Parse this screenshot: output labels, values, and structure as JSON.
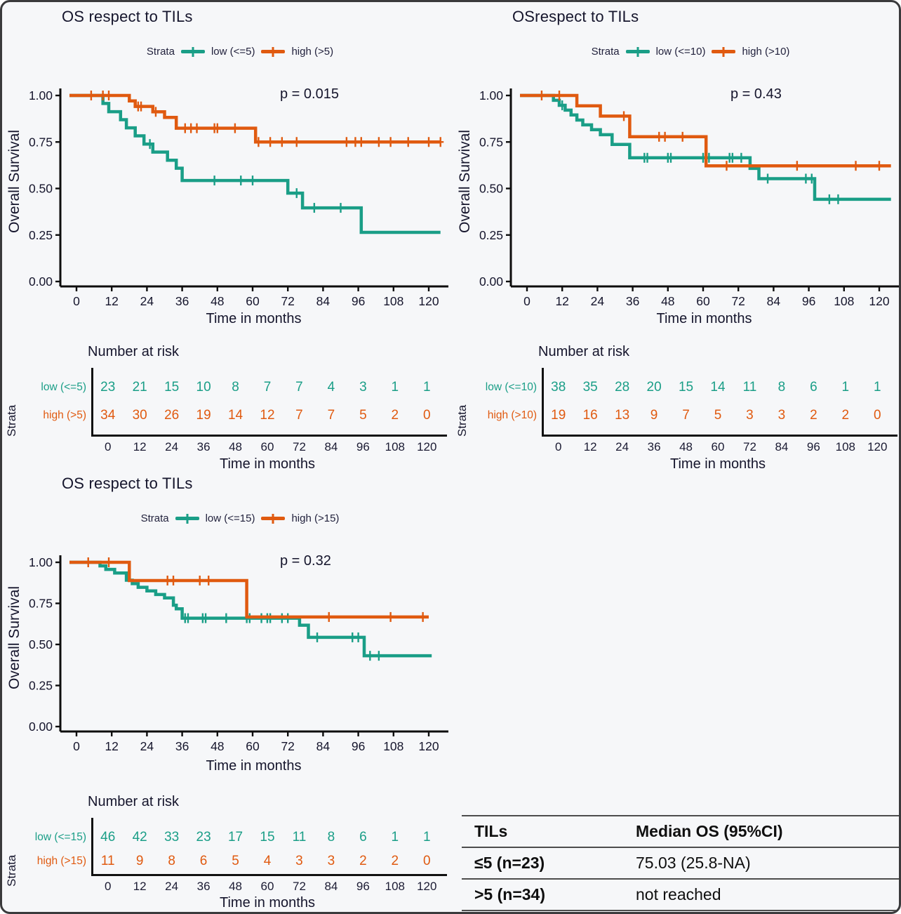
{
  "colors": {
    "low": "#1A9E87",
    "high": "#E05A10",
    "text": "#15152c",
    "axis": "#0d0d0d",
    "background": "#f6f7f9"
  },
  "chart_data": [
    {
      "type": "line",
      "subtype": "kaplan-meier",
      "title": "OS respect to TILs",
      "legend_label": "Strata",
      "p_value": "p = 0.015",
      "xlabel": "Time in months",
      "ylabel": "Overall Survival",
      "xticks": [
        0,
        12,
        24,
        36,
        48,
        60,
        72,
        84,
        96,
        108,
        120
      ],
      "ytick_labels": [
        "0.00",
        "0.25",
        "0.50",
        "0.75",
        "1.00"
      ],
      "yticks": [
        0,
        0.25,
        0.5,
        0.75,
        1
      ],
      "xlim": [
        0,
        126
      ],
      "ylim": [
        0,
        1
      ],
      "series": [
        {
          "name": "low (<=5)",
          "color_key": "low",
          "points": [
            [
              0,
              1
            ],
            [
              9,
              0.957
            ],
            [
              11,
              0.913
            ],
            [
              15,
              0.87
            ],
            [
              17,
              0.826
            ],
            [
              20,
              0.783
            ],
            [
              23,
              0.739
            ],
            [
              26,
              0.696
            ],
            [
              31,
              0.652
            ],
            [
              34,
              0.609
            ],
            [
              36,
              0.543
            ],
            [
              72,
              0.475
            ],
            [
              77,
              0.396
            ],
            [
              97,
              0.264
            ],
            [
              124,
              0.264
            ]
          ],
          "censors": [
            [
              25,
              0.739
            ],
            [
              47,
              0.543
            ],
            [
              56,
              0.543
            ],
            [
              60,
              0.543
            ],
            [
              75,
              0.475
            ],
            [
              81,
              0.396
            ],
            [
              90,
              0.396
            ]
          ]
        },
        {
          "name": "high (>5)",
          "color_key": "high",
          "points": [
            [
              0,
              1
            ],
            [
              18,
              0.971
            ],
            [
              20,
              0.941
            ],
            [
              26,
              0.912
            ],
            [
              30,
              0.882
            ],
            [
              34,
              0.824
            ],
            [
              61,
              0.75
            ],
            [
              124,
              0.75
            ]
          ],
          "censors": [
            [
              5,
              1
            ],
            [
              9,
              1
            ],
            [
              11,
              1
            ],
            [
              21,
              0.941
            ],
            [
              22,
              0.941
            ],
            [
              27,
              0.912
            ],
            [
              37,
              0.824
            ],
            [
              39,
              0.824
            ],
            [
              41,
              0.824
            ],
            [
              47,
              0.824
            ],
            [
              48,
              0.824
            ],
            [
              54,
              0.824
            ],
            [
              62,
              0.75
            ],
            [
              66,
              0.75
            ],
            [
              70,
              0.75
            ],
            [
              75,
              0.75
            ],
            [
              92,
              0.75
            ],
            [
              95,
              0.75
            ],
            [
              97,
              0.75
            ],
            [
              103,
              0.75
            ],
            [
              107,
              0.75
            ],
            [
              113,
              0.75
            ],
            [
              120,
              0.75
            ],
            [
              124,
              0.75
            ]
          ]
        }
      ],
      "risk_table": {
        "title": "Number at risk",
        "strata_label": "Strata",
        "xlabel": "Time in months",
        "timepoints": [
          0,
          12,
          24,
          36,
          48,
          60,
          72,
          84,
          96,
          108,
          120
        ],
        "rows": [
          {
            "label": "low (<=5)",
            "color_key": "low",
            "counts": [
              23,
              21,
              15,
              10,
              8,
              7,
              7,
              4,
              3,
              1,
              1
            ]
          },
          {
            "label": "high (>5)",
            "color_key": "high",
            "counts": [
              34,
              30,
              26,
              19,
              14,
              12,
              7,
              7,
              5,
              2,
              0
            ]
          }
        ]
      }
    },
    {
      "type": "line",
      "subtype": "kaplan-meier",
      "title": "OSrespect to TILs",
      "legend_label": "Strata",
      "p_value": "p = 0.43",
      "xlabel": "Time in months",
      "ylabel": "Overall Survival",
      "xticks": [
        0,
        12,
        24,
        36,
        48,
        60,
        72,
        84,
        96,
        108,
        120
      ],
      "ytick_labels": [
        "0.00",
        "0.25",
        "0.50",
        "0.75",
        "1.00"
      ],
      "yticks": [
        0,
        0.25,
        0.5,
        0.75,
        1
      ],
      "xlim": [
        0,
        126
      ],
      "ylim": [
        0,
        1
      ],
      "series": [
        {
          "name": "low (<=10)",
          "color_key": "low",
          "points": [
            [
              0,
              1
            ],
            [
              9,
              0.974
            ],
            [
              11,
              0.947
            ],
            [
              13,
              0.921
            ],
            [
              15,
              0.895
            ],
            [
              17,
              0.868
            ],
            [
              19,
              0.842
            ],
            [
              22,
              0.816
            ],
            [
              25,
              0.789
            ],
            [
              29,
              0.737
            ],
            [
              35,
              0.665
            ],
            [
              76,
              0.608
            ],
            [
              79,
              0.553
            ],
            [
              98,
              0.442
            ],
            [
              124,
              0.442
            ]
          ],
          "censors": [
            [
              12,
              0.947
            ],
            [
              40,
              0.665
            ],
            [
              41,
              0.665
            ],
            [
              48,
              0.665
            ],
            [
              49,
              0.665
            ],
            [
              60,
              0.665
            ],
            [
              62,
              0.665
            ],
            [
              69,
              0.665
            ],
            [
              70,
              0.665
            ],
            [
              73,
              0.665
            ],
            [
              82,
              0.553
            ],
            [
              95,
              0.553
            ],
            [
              97,
              0.553
            ],
            [
              103,
              0.442
            ],
            [
              106,
              0.442
            ]
          ]
        },
        {
          "name": "high (>10)",
          "color_key": "high",
          "points": [
            [
              0,
              1
            ],
            [
              17,
              0.944
            ],
            [
              25,
              0.889
            ],
            [
              35,
              0.778
            ],
            [
              61,
              0.622
            ],
            [
              124,
              0.622
            ]
          ],
          "censors": [
            [
              5,
              1
            ],
            [
              11,
              1
            ],
            [
              33,
              0.889
            ],
            [
              45,
              0.778
            ],
            [
              47,
              0.778
            ],
            [
              53,
              0.778
            ],
            [
              68,
              0.622
            ],
            [
              92,
              0.622
            ],
            [
              112,
              0.622
            ],
            [
              120,
              0.622
            ]
          ]
        }
      ],
      "risk_table": {
        "title": "Number at risk",
        "strata_label": "Strata",
        "xlabel": "Time in months",
        "timepoints": [
          0,
          12,
          24,
          36,
          48,
          60,
          72,
          84,
          96,
          108,
          120
        ],
        "rows": [
          {
            "label": "low (<=10)",
            "color_key": "low",
            "counts": [
              38,
              35,
              28,
              20,
              15,
              14,
              11,
              8,
              6,
              1,
              1
            ]
          },
          {
            "label": "high (>10)",
            "color_key": "high",
            "counts": [
              19,
              16,
              13,
              9,
              7,
              5,
              3,
              3,
              2,
              2,
              0
            ]
          }
        ]
      }
    },
    {
      "type": "line",
      "subtype": "kaplan-meier",
      "title": "OS respect to TILs",
      "legend_label": "Strata",
      "p_value": "p = 0.32",
      "xlabel": "Time in months",
      "ylabel": "Overall Survival",
      "xticks": [
        0,
        12,
        24,
        36,
        48,
        60,
        72,
        84,
        96,
        108,
        120
      ],
      "ytick_labels": [
        "0.00",
        "0.25",
        "0.50",
        "0.75",
        "1.00"
      ],
      "yticks": [
        0,
        0.25,
        0.5,
        0.75,
        1
      ],
      "xlim": [
        0,
        126
      ],
      "ylim": [
        0,
        1
      ],
      "series": [
        {
          "name": "low (<=15)",
          "color_key": "low",
          "points": [
            [
              0,
              1
            ],
            [
              8,
              0.978
            ],
            [
              10,
              0.957
            ],
            [
              13,
              0.935
            ],
            [
              17,
              0.891
            ],
            [
              19,
              0.87
            ],
            [
              21,
              0.848
            ],
            [
              24,
              0.826
            ],
            [
              27,
              0.804
            ],
            [
              30,
              0.783
            ],
            [
              33,
              0.739
            ],
            [
              34,
              0.717
            ],
            [
              36,
              0.66
            ],
            [
              76,
              0.617
            ],
            [
              79,
              0.543
            ],
            [
              98,
              0.431
            ],
            [
              121,
              0.431
            ]
          ],
          "censors": [
            [
              37,
              0.66
            ],
            [
              38,
              0.66
            ],
            [
              43,
              0.66
            ],
            [
              44,
              0.66
            ],
            [
              51,
              0.66
            ],
            [
              58,
              0.66
            ],
            [
              59,
              0.66
            ],
            [
              63,
              0.66
            ],
            [
              65,
              0.66
            ],
            [
              66,
              0.66
            ],
            [
              70,
              0.66
            ],
            [
              72,
              0.66
            ],
            [
              82,
              0.543
            ],
            [
              94,
              0.543
            ],
            [
              96,
              0.543
            ],
            [
              100,
              0.431
            ],
            [
              103,
              0.431
            ]
          ]
        },
        {
          "name": "high (>15)",
          "color_key": "high",
          "points": [
            [
              0,
              1
            ],
            [
              18,
              0.889
            ],
            [
              58,
              0.667
            ],
            [
              120,
              0.667
            ]
          ],
          "censors": [
            [
              4,
              1
            ],
            [
              11,
              1
            ],
            [
              31,
              0.889
            ],
            [
              33,
              0.889
            ],
            [
              42,
              0.889
            ],
            [
              45,
              0.889
            ],
            [
              86,
              0.667
            ],
            [
              107,
              0.667
            ],
            [
              118,
              0.667
            ]
          ]
        }
      ],
      "risk_table": {
        "title": "Number at risk",
        "strata_label": "Strata",
        "xlabel": "Time in months",
        "timepoints": [
          0,
          12,
          24,
          36,
          48,
          60,
          72,
          84,
          96,
          108,
          120
        ],
        "rows": [
          {
            "label": "low (<=15)",
            "color_key": "low",
            "counts": [
              46,
              42,
              33,
              23,
              17,
              15,
              11,
              8,
              6,
              1,
              1
            ]
          },
          {
            "label": "high (>15)",
            "color_key": "high",
            "counts": [
              11,
              9,
              8,
              6,
              5,
              4,
              3,
              3,
              2,
              2,
              0
            ]
          }
        ]
      }
    }
  ],
  "summary_table": {
    "headers": [
      "TILs",
      "Median OS (95%CI)"
    ],
    "rows": [
      [
        "≤5 (n=23)",
        "75.03 (25.8-NA)"
      ],
      [
        ">5 (n=34)",
        "not reached"
      ]
    ]
  }
}
